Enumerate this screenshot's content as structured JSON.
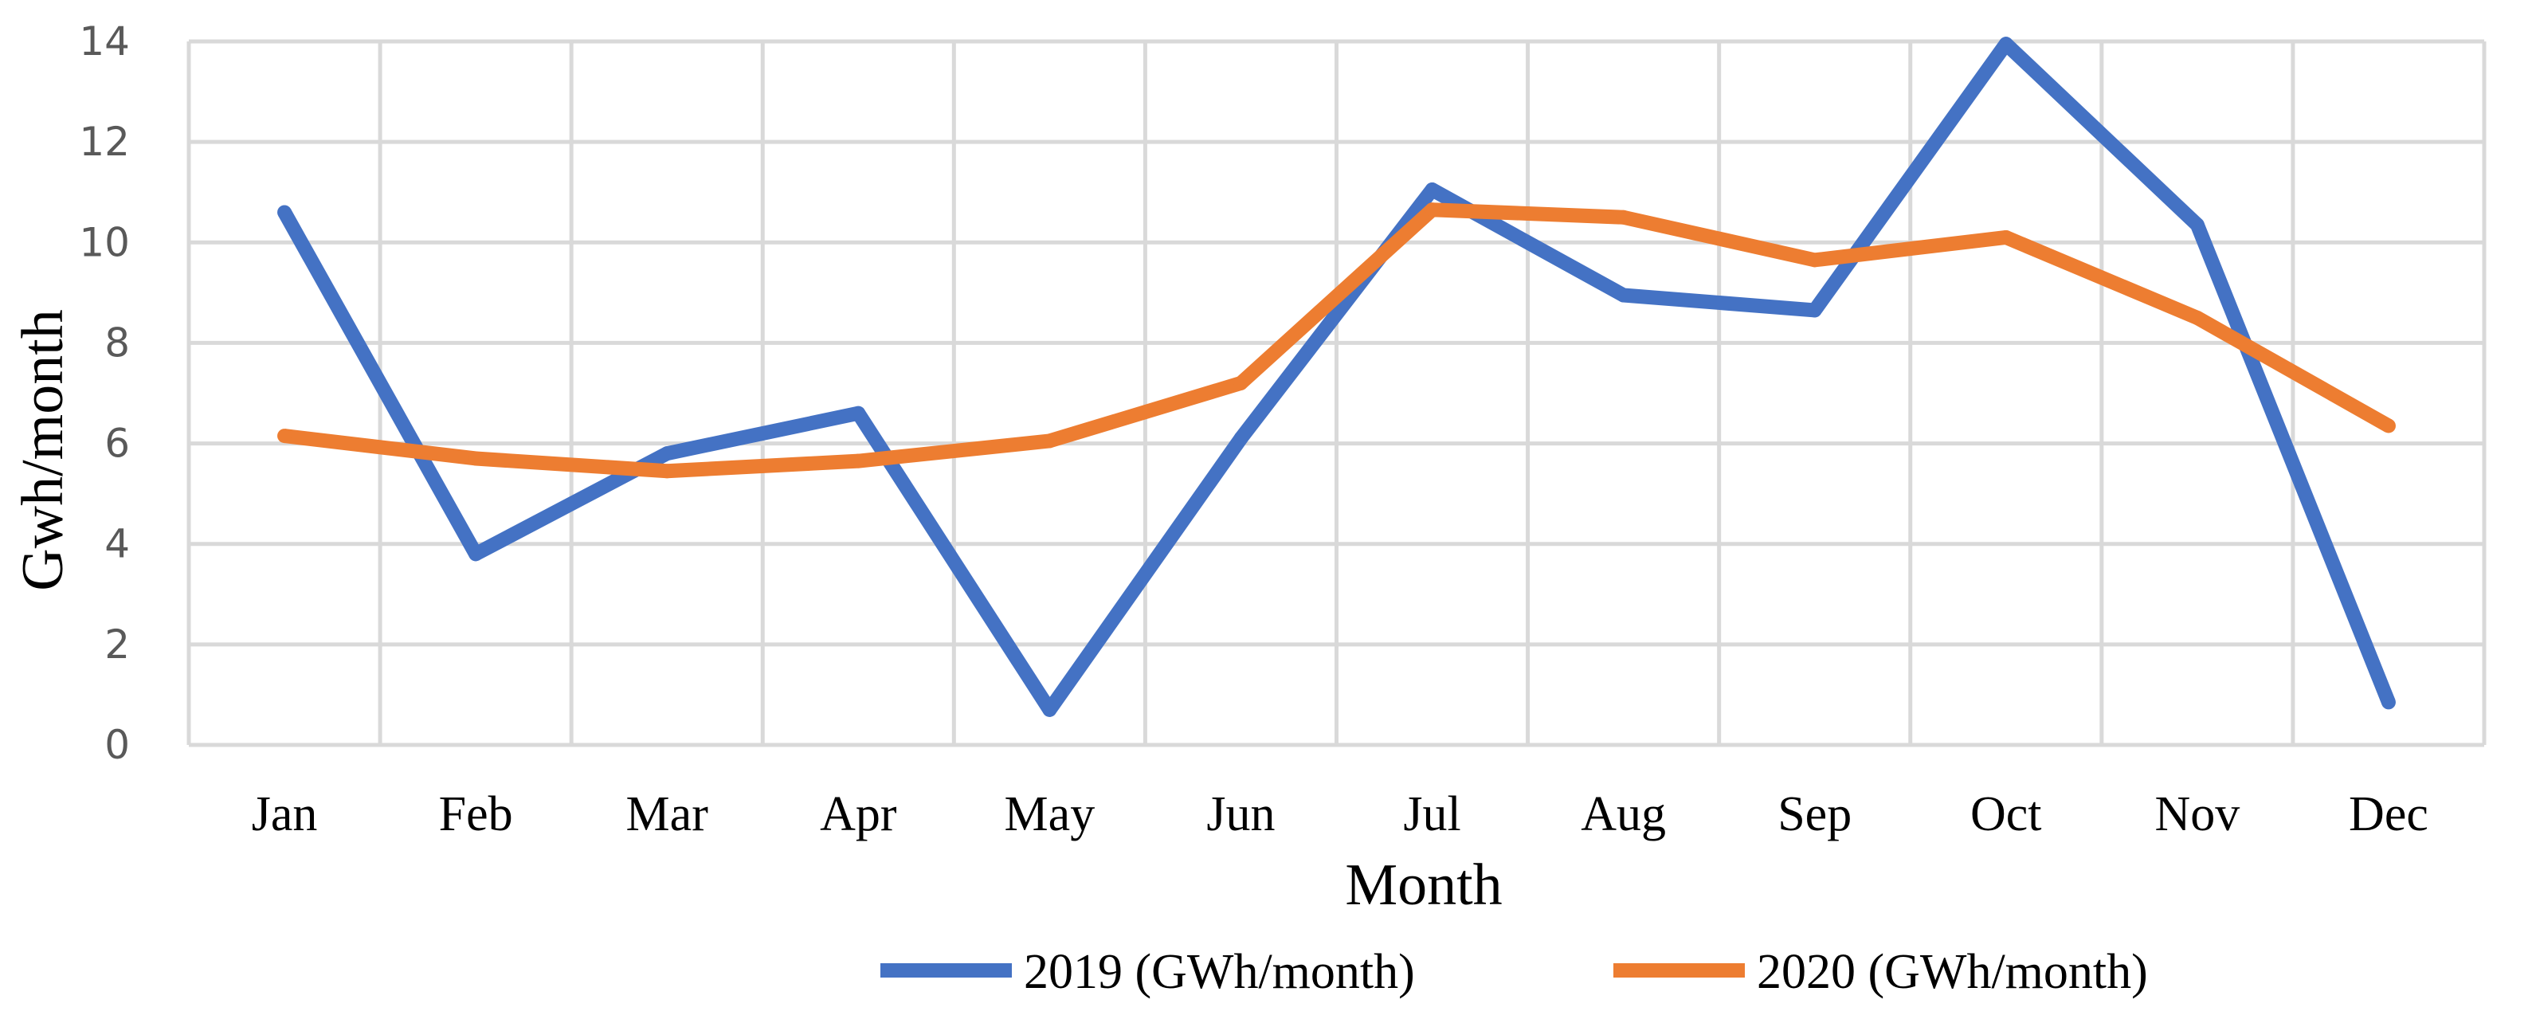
{
  "chart_data": {
    "type": "line",
    "title": "",
    "xlabel": "Month",
    "ylabel": "Gwh/month",
    "categories": [
      "Jan",
      "Feb",
      "Mar",
      "Apr",
      "May",
      "Jun",
      "Jul",
      "Aug",
      "Sep",
      "Oct",
      "Nov",
      "Dec"
    ],
    "ylim": [
      0,
      14
    ],
    "yticks": [
      "0",
      "2",
      "4",
      "6",
      "8",
      "10",
      "12",
      "14"
    ],
    "grid": true,
    "legend_position": "bottom",
    "series": [
      {
        "name": "2019 (GWh/month)",
        "color": "#4472C4",
        "values": [
          10.6,
          3.8,
          5.8,
          6.6,
          0.7,
          6.1,
          11.05,
          8.95,
          8.65,
          13.95,
          10.35,
          0.85
        ]
      },
      {
        "name": "2020 (GWh/month)",
        "color": "#ED7D31",
        "values": [
          6.15,
          5.7,
          5.45,
          5.65,
          6.05,
          7.2,
          10.65,
          10.5,
          9.65,
          10.1,
          8.5,
          6.35
        ]
      }
    ]
  }
}
